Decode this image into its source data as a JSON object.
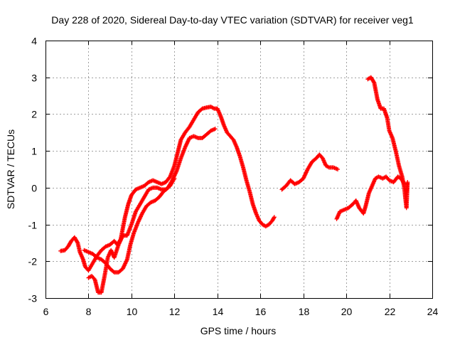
{
  "chart_data": {
    "type": "scatter",
    "title": "Day 228 of 2020, Sidereal Day-to-day VTEC variation (SDTVAR) for receiver veg1",
    "xlabel": "GPS time / hours",
    "ylabel": "SDTVAR / TECUs",
    "xlim": [
      6,
      24
    ],
    "ylim": [
      -3,
      4
    ],
    "xticks": [
      "6",
      "8",
      "10",
      "12",
      "14",
      "16",
      "18",
      "20",
      "22",
      "24"
    ],
    "yticks": [
      "-3",
      "-2",
      "-1",
      "0",
      "1",
      "2",
      "3",
      "4"
    ],
    "grid": true,
    "marker": "+",
    "color": "#ff0000",
    "series": [
      {
        "segments": [
          [
            [
              6.7,
              -1.72
            ],
            [
              6.9,
              -1.7
            ],
            [
              7.05,
              -1.6
            ],
            [
              7.2,
              -1.45
            ],
            [
              7.35,
              -1.35
            ],
            [
              7.5,
              -1.5
            ],
            [
              7.6,
              -1.75
            ],
            [
              7.75,
              -1.95
            ],
            [
              7.85,
              -2.15
            ],
            [
              8.0,
              -2.25
            ],
            [
              8.2,
              -2.05
            ],
            [
              8.4,
              -1.85
            ],
            [
              8.6,
              -1.7
            ],
            [
              8.8,
              -1.6
            ],
            [
              9.0,
              -1.55
            ],
            [
              9.2,
              -1.45
            ],
            [
              9.35,
              -1.55
            ],
            [
              9.5,
              -1.4
            ],
            [
              9.6,
              -1.1
            ],
            [
              9.7,
              -0.8
            ],
            [
              9.85,
              -0.45
            ],
            [
              10.0,
              -0.2
            ],
            [
              10.2,
              -0.05
            ],
            [
              10.4,
              0.0
            ],
            [
              10.6,
              0.05
            ],
            [
              10.8,
              0.15
            ],
            [
              11.0,
              0.2
            ],
            [
              11.2,
              0.15
            ],
            [
              11.4,
              0.1
            ],
            [
              11.6,
              0.15
            ],
            [
              11.8,
              0.3
            ],
            [
              12.0,
              0.6
            ],
            [
              12.15,
              0.95
            ],
            [
              12.3,
              1.3
            ],
            [
              12.5,
              1.5
            ],
            [
              12.7,
              1.65
            ],
            [
              12.9,
              1.85
            ],
            [
              13.1,
              2.05
            ],
            [
              13.3,
              2.15
            ],
            [
              13.5,
              2.18
            ],
            [
              13.7,
              2.2
            ],
            [
              13.85,
              2.15
            ],
            [
              14.0,
              2.15
            ],
            [
              14.15,
              1.95
            ],
            [
              14.3,
              1.7
            ],
            [
              14.45,
              1.5
            ],
            [
              14.6,
              1.4
            ],
            [
              14.75,
              1.3
            ],
            [
              14.9,
              1.1
            ],
            [
              15.05,
              0.85
            ],
            [
              15.2,
              0.55
            ],
            [
              15.35,
              0.2
            ],
            [
              15.5,
              -0.1
            ],
            [
              15.65,
              -0.45
            ],
            [
              15.8,
              -0.7
            ],
            [
              15.95,
              -0.9
            ],
            [
              16.1,
              -1.0
            ],
            [
              16.25,
              -1.05
            ],
            [
              16.4,
              -1.0
            ],
            [
              16.55,
              -0.9
            ],
            [
              16.65,
              -0.8
            ]
          ],
          [
            [
              7.8,
              -1.7
            ],
            [
              8.0,
              -1.75
            ],
            [
              8.2,
              -1.8
            ],
            [
              8.4,
              -1.9
            ],
            [
              8.6,
              -1.95
            ],
            [
              8.8,
              -2.05
            ],
            [
              9.0,
              -2.2
            ],
            [
              9.2,
              -2.3
            ],
            [
              9.4,
              -2.3
            ],
            [
              9.6,
              -2.2
            ],
            [
              9.8,
              -1.95
            ],
            [
              9.95,
              -1.55
            ],
            [
              10.1,
              -1.25
            ],
            [
              10.3,
              -0.95
            ],
            [
              10.5,
              -0.7
            ],
            [
              10.7,
              -0.5
            ],
            [
              10.9,
              -0.4
            ],
            [
              11.1,
              -0.35
            ],
            [
              11.3,
              -0.25
            ],
            [
              11.5,
              -0.1
            ],
            [
              11.7,
              0.0
            ],
            [
              11.9,
              0.2
            ],
            [
              12.1,
              0.45
            ],
            [
              12.3,
              0.8
            ],
            [
              12.5,
              1.1
            ],
            [
              12.7,
              1.35
            ],
            [
              12.9,
              1.4
            ],
            [
              13.1,
              1.35
            ],
            [
              13.3,
              1.35
            ],
            [
              13.5,
              1.45
            ],
            [
              13.7,
              1.55
            ],
            [
              13.9,
              1.6
            ]
          ],
          [
            [
              8.0,
              -2.45
            ],
            [
              8.15,
              -2.4
            ],
            [
              8.3,
              -2.5
            ],
            [
              8.45,
              -2.85
            ],
            [
              8.6,
              -2.85
            ],
            [
              8.75,
              -2.4
            ],
            [
              8.9,
              -1.9
            ],
            [
              9.05,
              -1.7
            ],
            [
              9.2,
              -1.9
            ],
            [
              9.4,
              -1.55
            ],
            [
              9.6,
              -1.3
            ],
            [
              9.8,
              -1.3
            ],
            [
              10.0,
              -1.0
            ],
            [
              10.2,
              -0.65
            ],
            [
              10.4,
              -0.45
            ],
            [
              10.6,
              -0.25
            ],
            [
              10.8,
              -0.05
            ],
            [
              11.0,
              0.0
            ],
            [
              11.2,
              0.0
            ],
            [
              11.4,
              -0.05
            ],
            [
              11.6,
              -0.05
            ],
            [
              11.8,
              0.05
            ],
            [
              12.0,
              0.25
            ]
          ],
          [
            [
              17.0,
              -0.05
            ],
            [
              17.2,
              0.05
            ],
            [
              17.4,
              0.2
            ],
            [
              17.6,
              0.1
            ],
            [
              17.8,
              0.15
            ],
            [
              18.0,
              0.25
            ],
            [
              18.2,
              0.5
            ],
            [
              18.4,
              0.7
            ],
            [
              18.6,
              0.8
            ],
            [
              18.75,
              0.9
            ],
            [
              18.9,
              0.8
            ],
            [
              19.05,
              0.6
            ],
            [
              19.2,
              0.55
            ],
            [
              19.4,
              0.55
            ],
            [
              19.6,
              0.5
            ]
          ],
          [
            [
              19.55,
              -0.85
            ],
            [
              19.7,
              -0.65
            ],
            [
              19.9,
              -0.6
            ],
            [
              20.1,
              -0.55
            ],
            [
              20.3,
              -0.45
            ],
            [
              20.45,
              -0.35
            ],
            [
              20.6,
              -0.55
            ],
            [
              20.8,
              -0.7
            ],
            [
              20.9,
              -0.5
            ],
            [
              21.05,
              -0.15
            ],
            [
              21.2,
              0.05
            ],
            [
              21.35,
              0.25
            ],
            [
              21.5,
              0.3
            ],
            [
              21.7,
              0.25
            ],
            [
              21.85,
              0.3
            ],
            [
              22.0,
              0.2
            ],
            [
              22.2,
              0.15
            ],
            [
              22.4,
              0.3
            ],
            [
              22.55,
              0.25
            ],
            [
              22.7,
              0.1
            ]
          ],
          [
            [
              21.0,
              2.95
            ],
            [
              21.15,
              3.0
            ],
            [
              21.3,
              2.85
            ],
            [
              21.45,
              2.4
            ],
            [
              21.6,
              2.15
            ],
            [
              21.75,
              2.15
            ],
            [
              21.9,
              1.9
            ],
            [
              22.0,
              1.55
            ],
            [
              22.15,
              1.35
            ],
            [
              22.3,
              1.0
            ],
            [
              22.45,
              0.6
            ],
            [
              22.6,
              0.3
            ],
            [
              22.7,
              0.0
            ],
            [
              22.75,
              -0.3
            ],
            [
              22.8,
              -0.55
            ],
            [
              22.85,
              0.15
            ],
            [
              22.8,
              -0.1
            ]
          ]
        ]
      }
    ]
  }
}
